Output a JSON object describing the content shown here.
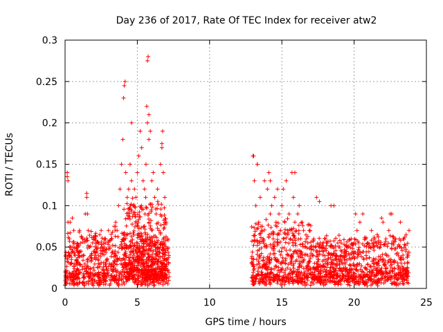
{
  "chart_data": {
    "type": "scatter",
    "title": "Day 236 of 2017, Rate Of TEC Index for receiver atw2",
    "xlabel": "GPS time / hours",
    "ylabel": "ROTI / TECUs",
    "xlim": [
      0,
      25
    ],
    "ylim": [
      0,
      0.3
    ],
    "x_ticks": [
      0,
      5,
      10,
      15,
      20,
      25
    ],
    "x_tick_labels": [
      "0",
      "5",
      "10",
      "15",
      "20",
      "25"
    ],
    "y_ticks": [
      0,
      0.05,
      0.1,
      0.15,
      0.2,
      0.25,
      0.3
    ],
    "y_tick_labels": [
      "0",
      "0.05",
      "0.1",
      "0.15",
      "0.2",
      "0.25",
      "0.3"
    ],
    "grid": true,
    "marker": "plus",
    "color": "#ff0000",
    "series": [
      {
        "x": [
          0.1,
          0.15,
          0.2,
          0.3,
          0.35,
          0.4,
          0.45,
          0.5,
          0.6,
          0.7,
          0.8,
          0.9,
          1.0,
          1.1,
          1.2,
          1.3,
          1.4,
          1.5,
          1.6,
          1.7,
          1.8,
          1.9,
          2.0,
          2.1,
          2.2,
          2.3,
          2.4,
          2.5,
          2.6,
          2.7,
          2.8,
          2.9,
          3.0,
          3.1,
          3.2,
          3.3,
          3.4,
          3.5,
          3.6,
          3.7,
          3.8,
          3.9,
          4.0,
          4.05,
          4.1,
          4.15,
          4.2,
          4.3,
          4.4,
          4.5,
          4.6,
          4.7,
          4.8,
          4.9,
          5.0,
          5.1,
          5.2,
          5.3,
          5.4,
          5.5,
          5.6,
          5.7,
          5.75,
          5.8,
          5.9,
          6.0,
          6.1,
          6.2,
          6.3,
          6.4,
          6.5,
          6.6,
          6.7,
          6.8,
          6.9,
          7.0,
          7.1,
          0.15,
          0.2,
          0.5,
          1.5,
          1.55,
          3.5,
          4.6,
          5.65,
          5.7,
          5.8,
          6.7,
          6.75,
          13.0,
          13.1,
          13.2,
          13.3,
          13.4,
          13.5,
          13.6,
          13.7,
          13.8,
          13.9,
          14.0,
          14.1,
          14.2,
          14.3,
          14.4,
          14.5,
          14.6,
          14.7,
          14.8,
          14.9,
          15.0,
          15.1,
          15.2,
          15.3,
          15.4,
          15.5,
          15.6,
          15.7,
          15.8,
          15.9,
          16.0,
          16.1,
          16.2,
          16.3,
          16.4,
          16.5,
          16.6,
          16.7,
          16.8,
          16.9,
          17.0,
          17.2,
          17.4,
          17.6,
          17.8,
          18.0,
          18.2,
          18.4,
          18.6,
          18.8,
          19.0,
          19.2,
          19.4,
          19.6,
          19.8,
          20.0,
          20.2,
          20.4,
          20.6,
          20.8,
          21.0,
          21.2,
          21.4,
          21.6,
          21.8,
          22.0,
          22.2,
          22.4,
          22.6,
          22.8,
          23.0,
          23.2,
          23.4,
          23.6,
          23.8,
          13.05,
          13.3,
          14.2,
          15.1,
          15.9,
          17.4,
          18.4,
          20.1,
          21.9,
          22.5
        ],
        "y": [
          0.02,
          0.135,
          0.13,
          0.06,
          0.08,
          0.05,
          0.03,
          0.045,
          0.07,
          0.04,
          0.035,
          0.05,
          0.07,
          0.045,
          0.06,
          0.04,
          0.09,
          0.11,
          0.07,
          0.05,
          0.04,
          0.055,
          0.06,
          0.035,
          0.05,
          0.04,
          0.065,
          0.07,
          0.045,
          0.05,
          0.06,
          0.035,
          0.07,
          0.05,
          0.06,
          0.045,
          0.075,
          0.08,
          0.07,
          0.1,
          0.12,
          0.15,
          0.18,
          0.23,
          0.245,
          0.25,
          0.14,
          0.11,
          0.12,
          0.15,
          0.13,
          0.1,
          0.12,
          0.11,
          0.14,
          0.16,
          0.19,
          0.17,
          0.13,
          0.12,
          0.15,
          0.275,
          0.28,
          0.21,
          0.19,
          0.13,
          0.14,
          0.11,
          0.09,
          0.12,
          0.07,
          0.15,
          0.17,
          0.14,
          0.11,
          0.08,
          0.06,
          0.14,
          0.08,
          0.085,
          0.115,
          0.09,
          0.075,
          0.2,
          0.22,
          0.2,
          0.18,
          0.175,
          0.19,
          0.16,
          0.13,
          0.1,
          0.15,
          0.08,
          0.11,
          0.07,
          0.06,
          0.13,
          0.05,
          0.12,
          0.14,
          0.09,
          0.1,
          0.06,
          0.11,
          0.08,
          0.12,
          0.09,
          0.07,
          0.1,
          0.06,
          0.08,
          0.13,
          0.07,
          0.09,
          0.06,
          0.14,
          0.11,
          0.08,
          0.07,
          0.09,
          0.1,
          0.06,
          0.08,
          0.07,
          0.05,
          0.06,
          0.055,
          0.07,
          0.05,
          0.06,
          0.045,
          0.105,
          0.05,
          0.06,
          0.04,
          0.05,
          0.1,
          0.04,
          0.05,
          0.03,
          0.045,
          0.05,
          0.06,
          0.055,
          0.07,
          0.08,
          0.09,
          0.06,
          0.05,
          0.07,
          0.06,
          0.065,
          0.05,
          0.08,
          0.06,
          0.07,
          0.09,
          0.06,
          0.05,
          0.08,
          0.06,
          0.065,
          0.07,
          0.16,
          0.15,
          0.13,
          0.12,
          0.14,
          0.11,
          0.1,
          0.09,
          0.085,
          0.09
        ]
      }
    ],
    "band_density_note": ""
  }
}
